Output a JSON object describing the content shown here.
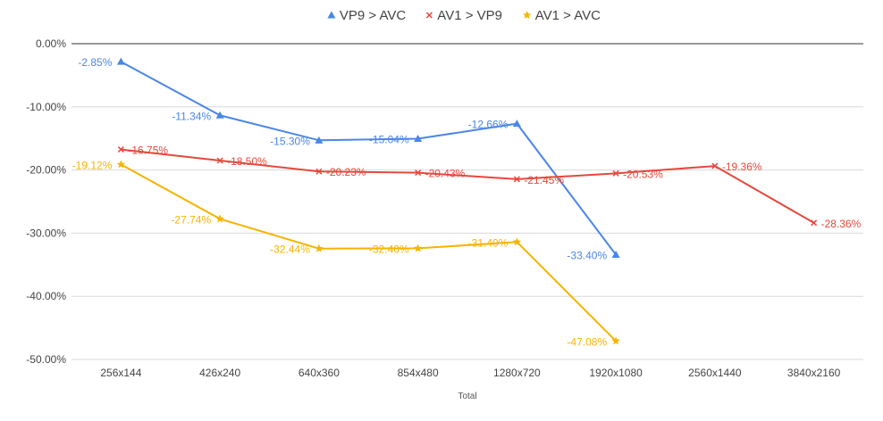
{
  "chart_data": {
    "type": "line",
    "title": "",
    "xlabel": "Total",
    "ylabel": "",
    "categories": [
      "256x144",
      "426x240",
      "640x360",
      "854x480",
      "1280x720",
      "1920x1080",
      "2560x1440",
      "3840x2160"
    ],
    "ylim": [
      -50,
      0
    ],
    "yticks": [
      0,
      -10,
      -20,
      -30,
      -40,
      -50
    ],
    "ytick_labels": [
      "0.00%",
      "-10.00%",
      "-20.00%",
      "-30.00%",
      "-40.00%",
      "-50.00%"
    ],
    "grid": true,
    "legend_position": "top",
    "series": [
      {
        "name": "VP9 > AVC",
        "color": "#4a86e8",
        "marker": "triangle",
        "values": [
          -2.85,
          -11.34,
          -15.3,
          -15.04,
          -12.66,
          -33.4,
          null,
          null
        ],
        "labels": [
          "-2.85%",
          "-11.34%",
          "-15.30%",
          "-15.04%",
          "-12.66%",
          "-33.40%",
          null,
          null
        ]
      },
      {
        "name": "AV1 > VP9",
        "color": "#e8473b",
        "marker": "x",
        "values": [
          -16.75,
          -18.5,
          -20.23,
          -20.43,
          -21.45,
          -20.53,
          -19.36,
          -28.36
        ],
        "labels": [
          "-16.75%",
          "-18.50%",
          "-20.23%",
          "-20.43%",
          "-21.45%",
          "-20.53%",
          "-19.36%",
          "-28.36%"
        ]
      },
      {
        "name": "AV1 > AVC",
        "color": "#f6b400",
        "marker": "star",
        "values": [
          -19.12,
          -27.74,
          -32.44,
          -32.4,
          -31.4,
          -47.08,
          null,
          null
        ],
        "labels": [
          "-19.12%",
          "-27.74%",
          "-32.44%",
          "-32.40%",
          "-31.40%",
          "-47.08%",
          null,
          null
        ]
      }
    ]
  }
}
